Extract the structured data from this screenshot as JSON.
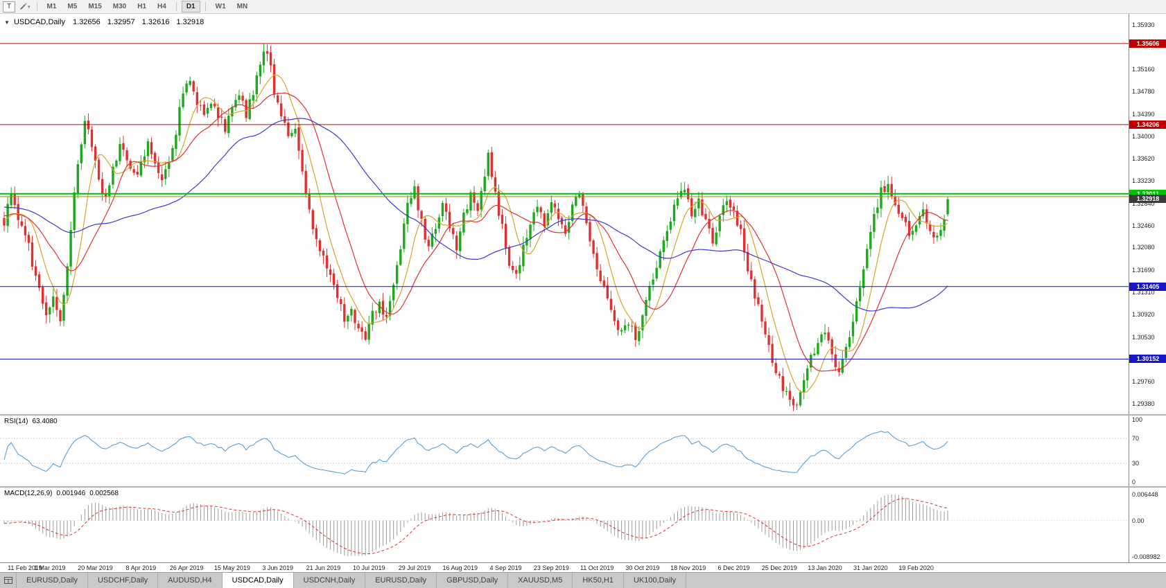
{
  "toolbar": {
    "template_button": "T",
    "timeframe_groups": [
      [
        "M1",
        "M5",
        "M15",
        "M30",
        "H1",
        "H4"
      ],
      [
        "D1"
      ],
      [
        "W1",
        "MN"
      ]
    ],
    "active_timeframe": "D1"
  },
  "chart_header": {
    "symbol": "USDCAD,Daily",
    "open": "1.32656",
    "high": "1.32957",
    "low": "1.32616",
    "close": "1.32918"
  },
  "price_scale": {
    "labels": [
      "1.35930",
      "1.35160",
      "1.34780",
      "1.34390",
      "1.34000",
      "1.33620",
      "1.33230",
      "1.32840",
      "1.32460",
      "1.32080",
      "1.31690",
      "1.31310",
      "1.30920",
      "1.30530",
      "1.30150",
      "1.29760",
      "1.29380"
    ]
  },
  "levels": [
    {
      "price": 1.35606,
      "label": "1.35606",
      "color": "#c00000",
      "width": 1
    },
    {
      "price": 1.34206,
      "label": "1.34206",
      "color": "#c00000",
      "width": 1
    },
    {
      "price": 1.33011,
      "label": "1.33011",
      "color": "#00bf00",
      "width": 2
    },
    {
      "price": 1.3296,
      "label": null,
      "color": "#8f8f00",
      "width": 1
    },
    {
      "price": 1.31405,
      "label": "1.31405",
      "color": "#1616c8",
      "width": 1
    },
    {
      "price": 1.30152,
      "label": "1.30152",
      "color": "#1616c8",
      "width": 1
    }
  ],
  "bid": {
    "price": 1.32918,
    "label": "1.32918",
    "color": "#3a3a3a"
  },
  "chart_data": {
    "type": "candlestick",
    "symbol": "USDCAD",
    "timeframe": "Daily",
    "x_labels": [
      "11 Feb 2019",
      "1 Mar 2019",
      "20 Mar 2019",
      "8 Apr 2019",
      "26 Apr 2019",
      "15 May 2019",
      "3 Jun 2019",
      "21 Jun 2019",
      "10 Jul 2019",
      "29 Jul 2019",
      "16 Aug 2019",
      "4 Sep 2019",
      "23 Sep 2019",
      "11 Oct 2019",
      "30 Oct 2019",
      "18 Nov 2019",
      "6 Dec 2019",
      "25 Dec 2019",
      "13 Jan 2020",
      "31 Jan 2020",
      "19 Feb 2020"
    ],
    "candles_per_label": 13,
    "num_candles": 270,
    "y_range": {
      "top": 1.3612,
      "bottom": 1.292
    },
    "up_color": "#1da81d",
    "down_color": "#e03030",
    "last_candle": {
      "o": 1.32656,
      "h": 1.32957,
      "l": 1.32616,
      "c": 1.32918
    },
    "moving_averages": [
      {
        "name": "ma-fast",
        "period": 8,
        "color": "#d9a426"
      },
      {
        "name": "ma-mid",
        "period": 17,
        "color": "#e03030"
      },
      {
        "name": "ma-slow",
        "period": 48,
        "color": "#3a3ad0"
      }
    ],
    "prehistory_waypoints": [
      [
        -50,
        1.3305
      ],
      [
        -30,
        1.3285
      ],
      [
        -10,
        1.3268
      ]
    ],
    "price_waypoints": [
      [
        0,
        1.3255
      ],
      [
        2,
        1.33
      ],
      [
        4,
        1.3258
      ],
      [
        6,
        1.3235
      ],
      [
        8,
        1.318
      ],
      [
        10,
        1.3135
      ],
      [
        12,
        1.3098
      ],
      [
        14,
        1.3122
      ],
      [
        16,
        1.3085
      ],
      [
        18,
        1.318
      ],
      [
        20,
        1.33
      ],
      [
        22,
        1.3395
      ],
      [
        23,
        1.3435
      ],
      [
        25,
        1.3385
      ],
      [
        27,
        1.333
      ],
      [
        29,
        1.329
      ],
      [
        31,
        1.334
      ],
      [
        33,
        1.3385
      ],
      [
        35,
        1.3355
      ],
      [
        37,
        1.333
      ],
      [
        39,
        1.335
      ],
      [
        41,
        1.3385
      ],
      [
        43,
        1.336
      ],
      [
        45,
        1.333
      ],
      [
        47,
        1.336
      ],
      [
        49,
        1.341
      ],
      [
        51,
        1.3475
      ],
      [
        53,
        1.3505
      ],
      [
        55,
        1.346
      ],
      [
        57,
        1.343
      ],
      [
        59,
        1.3465
      ],
      [
        61,
        1.344
      ],
      [
        63,
        1.3415
      ],
      [
        65,
        1.345
      ],
      [
        67,
        1.3475
      ],
      [
        69,
        1.344
      ],
      [
        71,
        1.348
      ],
      [
        73,
        1.3528
      ],
      [
        75,
        1.3552
      ],
      [
        77,
        1.348
      ],
      [
        79,
        1.344
      ],
      [
        81,
        1.34
      ],
      [
        83,
        1.342
      ],
      [
        85,
        1.334
      ],
      [
        87,
        1.327
      ],
      [
        89,
        1.322
      ],
      [
        91,
        1.319
      ],
      [
        93,
        1.3155
      ],
      [
        95,
        1.312
      ],
      [
        97,
        1.3085
      ],
      [
        99,
        1.3105
      ],
      [
        101,
        1.3065
      ],
      [
        103,
        1.3055
      ],
      [
        105,
        1.309
      ],
      [
        107,
        1.3115
      ],
      [
        109,
        1.308
      ],
      [
        111,
        1.3135
      ],
      [
        113,
        1.321
      ],
      [
        115,
        1.328
      ],
      [
        117,
        1.331
      ],
      [
        119,
        1.325
      ],
      [
        121,
        1.3205
      ],
      [
        123,
        1.3245
      ],
      [
        125,
        1.3285
      ],
      [
        127,
        1.3245
      ],
      [
        129,
        1.321
      ],
      [
        131,
        1.326
      ],
      [
        133,
        1.3305
      ],
      [
        135,
        1.328
      ],
      [
        137,
        1.3325
      ],
      [
        138,
        1.3375
      ],
      [
        140,
        1.33
      ],
      [
        142,
        1.324
      ],
      [
        144,
        1.318
      ],
      [
        146,
        1.316
      ],
      [
        148,
        1.3205
      ],
      [
        150,
        1.325
      ],
      [
        152,
        1.328
      ],
      [
        154,
        1.325
      ],
      [
        156,
        1.3285
      ],
      [
        158,
        1.3265
      ],
      [
        160,
        1.324
      ],
      [
        162,
        1.328
      ],
      [
        164,
        1.3295
      ],
      [
        166,
        1.325
      ],
      [
        168,
        1.32
      ],
      [
        170,
        1.3155
      ],
      [
        172,
        1.312
      ],
      [
        174,
        1.3085
      ],
      [
        176,
        1.306
      ],
      [
        178,
        1.308
      ],
      [
        180,
        1.305
      ],
      [
        182,
        1.3095
      ],
      [
        184,
        1.3135
      ],
      [
        186,
        1.3175
      ],
      [
        188,
        1.3215
      ],
      [
        190,
        1.3255
      ],
      [
        192,
        1.3295
      ],
      [
        194,
        1.331
      ],
      [
        196,
        1.327
      ],
      [
        198,
        1.3295
      ],
      [
        200,
        1.325
      ],
      [
        202,
        1.3215
      ],
      [
        204,
        1.3255
      ],
      [
        206,
        1.329
      ],
      [
        208,
        1.3265
      ],
      [
        210,
        1.3235
      ],
      [
        212,
        1.3175
      ],
      [
        214,
        1.3125
      ],
      [
        216,
        1.3085
      ],
      [
        218,
        1.3035
      ],
      [
        220,
        1.2995
      ],
      [
        222,
        1.2965
      ],
      [
        224,
        1.2945
      ],
      [
        226,
        1.2938
      ],
      [
        228,
        1.2975
      ],
      [
        230,
        1.3015
      ],
      [
        232,
        1.305
      ],
      [
        234,
        1.306
      ],
      [
        236,
        1.302
      ],
      [
        238,
        1.2998
      ],
      [
        240,
        1.3035
      ],
      [
        242,
        1.3085
      ],
      [
        244,
        1.3145
      ],
      [
        246,
        1.3205
      ],
      [
        248,
        1.3265
      ],
      [
        250,
        1.3305
      ],
      [
        252,
        1.3318
      ],
      [
        254,
        1.329
      ],
      [
        256,
        1.326
      ],
      [
        258,
        1.323
      ],
      [
        260,
        1.3252
      ],
      [
        262,
        1.327
      ],
      [
        264,
        1.3242
      ],
      [
        266,
        1.3222
      ],
      [
        268,
        1.3252
      ],
      [
        269,
        1.3292
      ]
    ]
  },
  "rsi_panel": {
    "name": "RSI(14)",
    "value": "63.4080",
    "period": 14,
    "color": "#57a0d6",
    "axis_labels": [
      "100",
      "70",
      "30",
      "0"
    ],
    "level_lines": [
      70,
      30
    ]
  },
  "macd_panel": {
    "name": "MACD(12,26,9)",
    "value_main": "0.001946",
    "value_signal": "0.002568",
    "fast": 12,
    "slow": 26,
    "signal_period": 9,
    "axis_top": "0.006448",
    "axis_mid": "0.00",
    "axis_bottom": "-0.008982",
    "histogram_color": "#9b9b9b",
    "signal_color": "#e03030"
  },
  "tabs": {
    "items": [
      "EURUSD,Daily",
      "USDCHF,Daily",
      "AUDUSD,H4",
      "USDCAD,Daily",
      "USDCNH,Daily",
      "EURUSD,Daily",
      "GBPUSD,Daily",
      "XAUUSD,M5",
      "HK50,H1",
      "UK100,Daily"
    ],
    "active_index": 3
  }
}
